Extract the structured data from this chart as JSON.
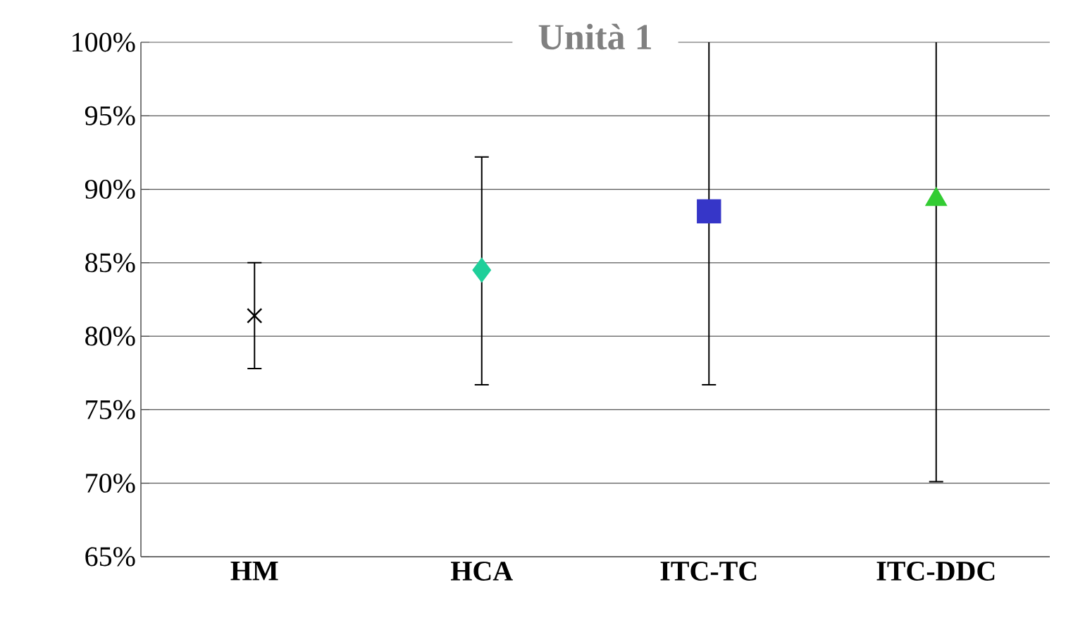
{
  "chart_data": {
    "type": "scatter",
    "title": "Unità 1",
    "categories": [
      "HM",
      "HCA",
      "ITC-TC",
      "ITC-DDC"
    ],
    "series": [
      {
        "color": "#000000",
        "marker": "cross",
        "values": [
          81.4,
          null,
          null,
          null
        ],
        "errors": [
          [
            77.8,
            85.0
          ],
          null,
          null,
          null
        ]
      },
      {
        "color": "#1fcf9a",
        "marker": "diamond",
        "values": [
          null,
          84.5,
          null,
          null
        ],
        "errors": [
          null,
          [
            76.7,
            92.2
          ],
          null,
          null
        ]
      },
      {
        "color": "#3636c8",
        "marker": "square",
        "values": [
          null,
          null,
          88.5,
          null
        ],
        "errors": [
          null,
          null,
          [
            76.7,
            100
          ],
          null
        ]
      },
      {
        "color": "#33cc33",
        "marker": "triangle",
        "values": [
          null,
          null,
          null,
          89.3
        ],
        "errors": [
          null,
          null,
          null,
          [
            70.1,
            100
          ]
        ]
      }
    ],
    "ylim": [
      65,
      100
    ],
    "yticks": [
      {
        "value": 65,
        "label": "65%"
      },
      {
        "value": 70,
        "label": "70%"
      },
      {
        "value": 75,
        "label": "75%"
      },
      {
        "value": 80,
        "label": "80%"
      },
      {
        "value": 85,
        "label": "85%"
      },
      {
        "value": 90,
        "label": "90%"
      },
      {
        "value": 95,
        "label": "95%"
      },
      {
        "value": 100,
        "label": "100%"
      }
    ],
    "grid": "y"
  }
}
